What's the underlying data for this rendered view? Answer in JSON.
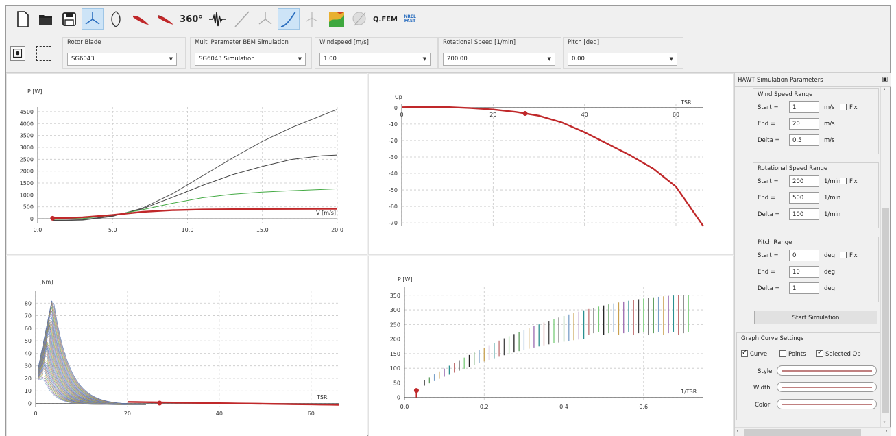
{
  "toolbar": {
    "icons": [
      "new-file-icon",
      "open-folder-icon",
      "save-icon",
      "rotor-icon",
      "airfoil-icon",
      "blade-icon",
      "blade-alt-icon",
      "polar-360-icon",
      "noise-icon",
      "line-icon",
      "turbine-icon",
      "curve-icon",
      "turbine-grey-icon",
      "contour-icon",
      "globe-icon",
      "qfem-icon",
      "nrel-fast-icon"
    ],
    "label_360": "360°",
    "qfem_label": "Q.FEM",
    "nrel_label": "NREL FAST",
    "colors": {
      "active_bg": "#cde4f7",
      "blade": "#c0282a",
      "accent": "#2c6fbf"
    }
  },
  "selectors": {
    "rotor_blade": {
      "label": "Rotor Blade",
      "value": "SG6043"
    },
    "multi_param": {
      "label": "Multi Parameter BEM Simulation",
      "value": "SG6043 Simulation"
    },
    "windspeed": {
      "label": "Windspeed [m/s]",
      "value": "1.00"
    },
    "rot_speed": {
      "label": "Rotational Speed [1/min]",
      "value": "200.00"
    },
    "pitch": {
      "label": "Pitch [deg]",
      "value": "0.00"
    }
  },
  "graphs": {
    "power": {
      "ylabel": "P [W]",
      "xlabel": "V [m/s]"
    },
    "cp": {
      "ylabel": "Cp",
      "xlabel": "TSR"
    },
    "torque": {
      "ylabel": "T [Nm]",
      "xlabel": "TSR"
    },
    "p_inv": {
      "ylabel": "P [W]",
      "xlabel": "1/TSR"
    }
  },
  "chart_data": [
    {
      "type": "line",
      "ylabel": "P [W]",
      "xlabel": "V [m/s]",
      "xlim": [
        0,
        20
      ],
      "ylim": [
        -200,
        4700
      ],
      "x_ticks": [
        "0.0",
        "5.0",
        "10.0",
        "15.0",
        "20.0"
      ],
      "y_ticks": [
        "0",
        "500",
        "1000",
        "1500",
        "2000",
        "2500",
        "3000",
        "3500",
        "4000",
        "4500"
      ],
      "x": [
        1,
        3,
        5,
        7,
        9,
        11,
        13,
        15,
        17,
        19,
        20
      ],
      "series": [
        {
          "color": "#555555",
          "values": [
            -90,
            -60,
            100,
            450,
            1050,
            1800,
            2550,
            3250,
            3850,
            4350,
            4600
          ]
        },
        {
          "color": "#444444",
          "values": [
            -70,
            -40,
            120,
            420,
            900,
            1400,
            1850,
            2200,
            2500,
            2650,
            2680
          ]
        },
        {
          "color": "#44aa44",
          "values": [
            -30,
            10,
            150,
            380,
            650,
            880,
            1030,
            1120,
            1180,
            1230,
            1260
          ]
        },
        {
          "color": "#c0282a",
          "values": [
            20,
            60,
            160,
            290,
            360,
            390,
            400,
            410,
            415,
            420,
            420
          ]
        }
      ],
      "marker": {
        "x": 1,
        "y": 20,
        "color": "#c0282a"
      }
    },
    {
      "type": "line",
      "ylabel": "Cp",
      "xlabel": "TSR",
      "xlim": [
        0,
        66
      ],
      "ylim": [
        -72,
        2
      ],
      "x_ticks": [
        "0",
        "20",
        "40",
        "60"
      ],
      "y_ticks": [
        "0",
        "-10",
        "-20",
        "-30",
        "-40",
        "-50",
        "-60",
        "-70"
      ],
      "x": [
        0,
        5,
        10,
        15,
        20,
        25,
        30,
        35,
        40,
        45,
        50,
        55,
        60,
        66
      ],
      "series": [
        {
          "color": "#c0282a",
          "values": [
            0.2,
            0.4,
            0.3,
            -0.3,
            -1.2,
            -2.7,
            -5,
            -9,
            -15,
            -22,
            -29,
            -37,
            -48,
            -72
          ]
        }
      ],
      "marker": {
        "x": 27,
        "y": -3.6,
        "color": "#c0282a"
      }
    },
    {
      "type": "line",
      "ylabel": "T [Nm]",
      "xlabel": "TSR",
      "xlim": [
        0,
        66
      ],
      "ylim": [
        -3,
        90
      ],
      "x_ticks": [
        "0",
        "20",
        "40",
        "60"
      ],
      "y_ticks": [
        "0",
        "10",
        "20",
        "30",
        "40",
        "50",
        "60",
        "70",
        "80"
      ],
      "marker": {
        "x": 27,
        "y": 0.3,
        "color": "#c0282a"
      }
    },
    {
      "type": "scatter",
      "ylabel": "P [W]",
      "xlabel": "1/TSR",
      "xlim": [
        0,
        0.75
      ],
      "ylim": [
        -10,
        380
      ],
      "x_ticks": [
        "0.0",
        "0.2",
        "0.4",
        "0.6"
      ],
      "y_ticks": [
        "0",
        "50",
        "100",
        "150",
        "200",
        "250",
        "300",
        "350"
      ],
      "marker": {
        "x": 0.03,
        "y": 5,
        "color": "#c0282a"
      }
    }
  ],
  "dock": {
    "title": "HAWT Simulation Parameters",
    "wind": {
      "title": "Wind Speed Range",
      "start_label": "Start =",
      "start": "1",
      "start_unit": "m/s",
      "end_label": "End =",
      "end": "20",
      "end_unit": "m/s",
      "delta_label": "Delta =",
      "delta": "0.5",
      "delta_unit": "m/s",
      "fix_label": "Fix"
    },
    "rot": {
      "title": "Rotational Speed Range",
      "start_label": "Start =",
      "start": "200",
      "start_unit": "1/min",
      "end_label": "End =",
      "end": "500",
      "end_unit": "1/min",
      "delta_label": "Delta =",
      "delta": "100",
      "delta_unit": "1/min",
      "fix_label": "Fix"
    },
    "pitch": {
      "title": "Pitch Range",
      "start_label": "Start =",
      "start": "0",
      "start_unit": "deg",
      "end_label": "End =",
      "end": "10",
      "end_unit": "deg",
      "delta_label": "Delta =",
      "delta": "1",
      "delta_unit": "deg",
      "fix_label": "Fix"
    },
    "start_button": "Start Simulation",
    "curve": {
      "title": "Graph Curve Settings",
      "curve_label": "Curve",
      "curve_checked": true,
      "points_label": "Points",
      "points_checked": false,
      "selected_label": "Selected Op",
      "selected_checked": true,
      "style_label": "Style",
      "width_label": "Width",
      "color_label": "Color"
    }
  }
}
